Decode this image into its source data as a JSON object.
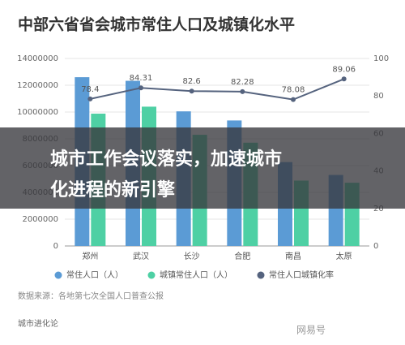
{
  "chart_data": {
    "type": "bar",
    "title": "中部六省省会城市常住人口及城镇化水平",
    "categories": [
      "郑州",
      "武汉",
      "长沙",
      "合肥",
      "南昌",
      "太原"
    ],
    "series": [
      {
        "name": "常住人口（人）",
        "color": "#5b9bd5",
        "type": "bar",
        "values": [
          12600000,
          12330000,
          10050000,
          9370000,
          6260000,
          5300000
        ]
      },
      {
        "name": "城镇常住人口（人）",
        "color": "#4ed0a4",
        "type": "bar",
        "values": [
          9880000,
          10400000,
          8300000,
          7710000,
          4880000,
          4720000
        ]
      },
      {
        "name": "常住人口城镇化率",
        "color": "#55637e",
        "type": "line",
        "axis": "y2",
        "values": [
          78.4,
          84.31,
          82.6,
          82.28,
          78.08,
          89.06
        ]
      }
    ],
    "ylim": [
      0,
      14000000
    ],
    "yticks": [
      0,
      2000000,
      4000000,
      6000000,
      8000000,
      10000000,
      12000000,
      14000000
    ],
    "y2lim": [
      0,
      100
    ],
    "y2ticks": [
      0,
      20,
      40,
      60,
      80,
      100
    ],
    "grid": true,
    "legend": "bottom",
    "source": "数据来源：各地第七次全国人口普查公报",
    "footer": "城市进化论",
    "watermark": "网易号",
    "overlay_text": [
      "城市工作会议落实，加速城市",
      "化进程的新引擎"
    ]
  }
}
